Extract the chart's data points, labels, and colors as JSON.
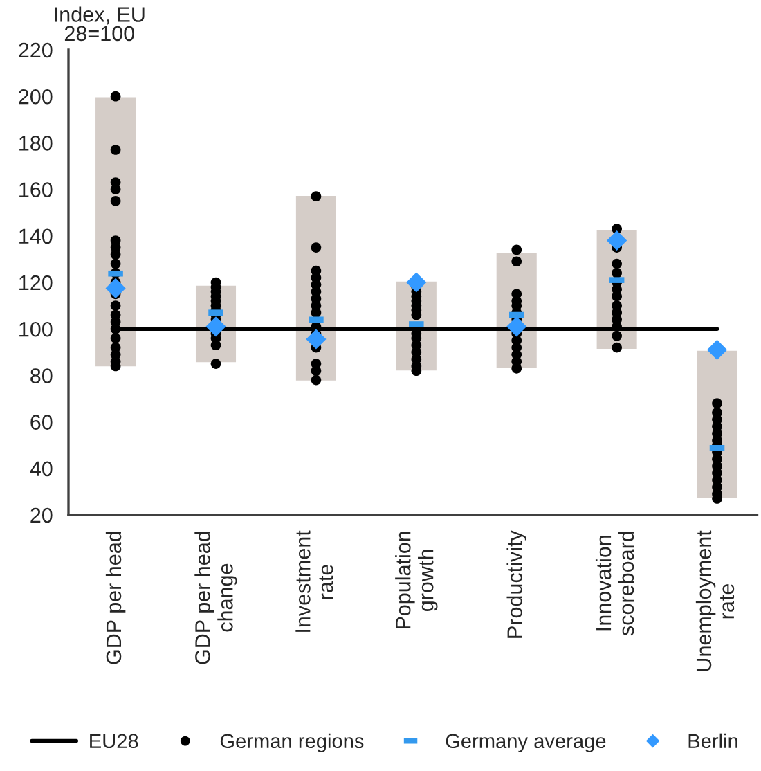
{
  "chart_data": {
    "type": "bar",
    "ylabel": "Index, EU\n28=100",
    "categories": [
      "GDP per head",
      "GDP per head\nchange",
      "Investment\nrate",
      "Population\ngrowth",
      "Productivity",
      "Innovation\nscoreboard",
      "Unemployment\nrate"
    ],
    "ylim": [
      20,
      220
    ],
    "yticks": [
      20,
      40,
      60,
      80,
      100,
      120,
      140,
      160,
      180,
      200,
      220
    ],
    "legend": "bottom",
    "series": [
      {
        "color": "#d5cdc8",
        "base": [
          83.5,
          85.3,
          77.4,
          81.7,
          82.7,
          91,
          26.8
        ],
        "values": [
          116.5,
          33.7,
          80.2,
          39.1,
          50.3,
          52,
          64.2
        ]
      },
      {
        "type": "line",
        "name": "EU28",
        "color": "#000000",
        "line_style": "solid",
        "values": [
          100,
          100,
          100,
          100,
          100,
          100,
          100
        ]
      },
      {
        "type": "scatter",
        "name": "German regions",
        "color": "#000000",
        "marker": "circle",
        "x": [
          "GDP per head",
          "GDP per head",
          "GDP per head",
          "GDP per head",
          "GDP per head",
          "GDP per head",
          "GDP per head",
          "GDP per head",
          "GDP per head",
          "GDP per head",
          "GDP per head",
          "GDP per head",
          "GDP per head",
          "GDP per head",
          "GDP per head",
          "GDP per head",
          "GDP per head",
          "GDP per head",
          "GDP per head",
          "GDP per head",
          "GDP per head",
          "GDP per head\nchange",
          "GDP per head\nchange",
          "GDP per head\nchange",
          "GDP per head\nchange",
          "GDP per head\nchange",
          "GDP per head\nchange",
          "GDP per head\nchange",
          "GDP per head\nchange",
          "GDP per head\nchange",
          "GDP per head\nchange",
          "GDP per head\nchange",
          "GDP per head\nchange",
          "GDP per head\nchange",
          "Investment\nrate",
          "Investment\nrate",
          "Investment\nrate",
          "Investment\nrate",
          "Investment\nrate",
          "Investment\nrate",
          "Investment\nrate",
          "Investment\nrate",
          "Investment\nrate",
          "Investment\nrate",
          "Investment\nrate",
          "Investment\nrate",
          "Investment\nrate",
          "Investment\nrate",
          "Investment\nrate",
          "Population\ngrowth",
          "Population\ngrowth",
          "Population\ngrowth",
          "Population\ngrowth",
          "Population\ngrowth",
          "Population\ngrowth",
          "Population\ngrowth",
          "Population\ngrowth",
          "Population\ngrowth",
          "Population\ngrowth",
          "Population\ngrowth",
          "Population\ngrowth",
          "Population\ngrowth",
          "Population\ngrowth",
          "Population\ngrowth",
          "Productivity",
          "Productivity",
          "Productivity",
          "Productivity",
          "Productivity",
          "Productivity",
          "Productivity",
          "Productivity",
          "Productivity",
          "Productivity",
          "Productivity",
          "Productivity",
          "Productivity",
          "Innovation\nscoreboard",
          "Innovation\nscoreboard",
          "Innovation\nscoreboard",
          "Innovation\nscoreboard",
          "Innovation\nscoreboard",
          "Innovation\nscoreboard",
          "Innovation\nscoreboard",
          "Innovation\nscoreboard",
          "Innovation\nscoreboard",
          "Innovation\nscoreboard",
          "Innovation\nscoreboard",
          "Innovation\nscoreboard",
          "Innovation\nscoreboard",
          "Unemployment\nrate",
          "Unemployment\nrate",
          "Unemployment\nrate",
          "Unemployment\nrate",
          "Unemployment\nrate",
          "Unemployment\nrate",
          "Unemployment\nrate",
          "Unemployment\nrate",
          "Unemployment\nrate",
          "Unemployment\nrate",
          "Unemployment\nrate",
          "Unemployment\nrate",
          "Unemployment\nrate",
          "Unemployment\nrate",
          "Unemployment\nrate"
        ],
        "values": [
          200,
          177,
          163,
          160,
          155,
          138,
          135,
          132,
          128,
          124,
          120,
          115,
          110,
          106,
          103,
          100,
          96,
          92,
          89,
          86,
          84,
          120,
          118,
          116,
          114,
          112,
          110,
          108,
          106,
          104,
          98,
          96,
          93,
          85,
          157,
          135,
          125,
          122,
          119,
          116,
          113,
          110,
          107,
          101,
          98,
          92,
          85,
          82,
          78,
          118,
          116,
          114,
          112,
          110,
          108,
          106,
          100,
          98,
          96,
          93,
          90,
          87,
          84,
          82,
          134,
          129,
          115,
          112,
          110,
          107,
          104,
          98,
          95,
          92,
          89,
          86,
          83,
          143,
          135,
          128,
          124,
          120,
          117,
          114,
          110,
          107,
          104,
          101,
          97,
          92,
          68,
          64,
          61,
          58,
          55,
          52,
          50,
          47,
          44,
          41,
          38,
          35,
          32,
          29,
          27
        ]
      },
      {
        "type": "scatter",
        "name": "Germany average",
        "color": "#3399ee",
        "values": [
          123.8,
          107,
          104,
          102,
          106,
          121,
          48.8
        ]
      },
      {
        "type": "scatter",
        "name": "Berlin",
        "color": "#3399ff",
        "marker": "diamond",
        "values": [
          117.5,
          101,
          95.6,
          120,
          101,
          138,
          91
        ]
      }
    ]
  }
}
